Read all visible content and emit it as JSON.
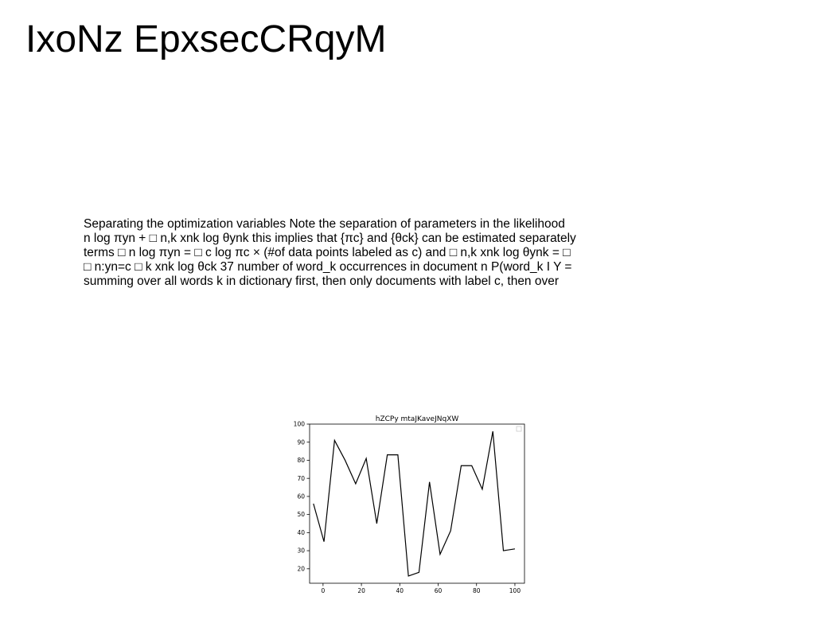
{
  "document": {
    "title": "IxoNz EpxsecCRqyM",
    "paragraph_lines": [
      "Separating the optimization variables Note the separation of parameters in the likelihood",
      "n log πyn + □ n,k xnk log θynk this implies that {πc} and {θck} can be estimated separately",
      "terms □ n log πyn = □ c log πc × (#of data points labeled as c) and □ n,k xnk log θynk = □",
      "□ n:yn=c □ k xnk log θck 37 number of word_k occurrences in document n P(word_k I Y =",
      "summing over all words k in dictionary first, then only documents with label c, then over"
    ]
  },
  "chart_data": {
    "type": "line",
    "title": "hZCPy mtaJKaveJNqXW",
    "xlabel": "",
    "ylabel": "",
    "xlim": [
      -7,
      105
    ],
    "ylim": [
      12,
      100
    ],
    "x_ticks": [
      0,
      20,
      40,
      60,
      80,
      100
    ],
    "y_ticks": [
      20,
      30,
      40,
      50,
      60,
      70,
      80,
      90,
      100
    ],
    "grid": false,
    "legend": "top-right, empty",
    "series": [
      {
        "color": "#000000",
        "x": [
          -5,
          0.5,
          6,
          11.5,
          17,
          22.5,
          28,
          33.5,
          39,
          44.5,
          50,
          55.5,
          61,
          66.5,
          72,
          77.5,
          83,
          88.5,
          94,
          100
        ],
        "y": [
          56,
          35,
          91,
          80,
          67,
          81,
          45,
          83,
          83,
          16,
          18,
          68,
          28,
          41,
          77,
          77,
          64,
          96,
          30,
          31
        ]
      }
    ]
  }
}
